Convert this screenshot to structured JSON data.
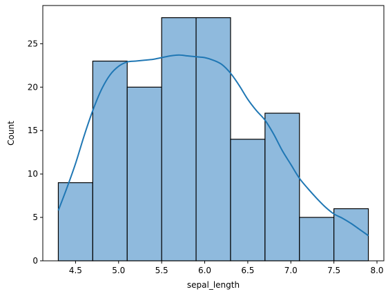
{
  "chart_data": {
    "type": "histogram",
    "xlabel": "sepal_length",
    "ylabel": "Count",
    "bins": [
      {
        "start": 4.3,
        "end": 4.7,
        "count": 9
      },
      {
        "start": 4.7,
        "end": 5.1,
        "count": 23
      },
      {
        "start": 5.1,
        "end": 5.5,
        "count": 20
      },
      {
        "start": 5.5,
        "end": 5.9,
        "count": 28
      },
      {
        "start": 5.9,
        "end": 6.3,
        "count": 28
      },
      {
        "start": 6.3,
        "end": 6.7,
        "count": 14
      },
      {
        "start": 6.7,
        "end": 7.1,
        "count": 17
      },
      {
        "start": 7.1,
        "end": 7.5,
        "count": 5
      },
      {
        "start": 7.5,
        "end": 7.9,
        "count": 6
      }
    ],
    "kde": {
      "x": [
        4.3,
        4.4,
        4.5,
        4.6,
        4.7,
        4.8,
        4.9,
        5.0,
        5.1,
        5.2,
        5.3,
        5.4,
        5.5,
        5.6,
        5.7,
        5.8,
        5.9,
        6.0,
        6.1,
        6.2,
        6.3,
        6.4,
        6.5,
        6.6,
        6.7,
        6.8,
        6.9,
        7.0,
        7.1,
        7.2,
        7.3,
        7.4,
        7.5,
        7.6,
        7.7,
        7.8,
        7.9
      ],
      "y": [
        5.8,
        8.4,
        11.2,
        14.4,
        17.3,
        19.7,
        21.4,
        22.4,
        22.9,
        23.0,
        23.1,
        23.2,
        23.4,
        23.6,
        23.7,
        23.6,
        23.5,
        23.4,
        23.1,
        22.6,
        21.6,
        20.2,
        18.6,
        17.3,
        16.2,
        14.6,
        12.7,
        11.1,
        9.5,
        8.3,
        7.2,
        6.2,
        5.4,
        4.9,
        4.3,
        3.6,
        2.9
      ]
    },
    "xlim": [
      4.12,
      8.08
    ],
    "ylim": [
      0,
      29.4
    ],
    "xticks": [
      4.5,
      5.0,
      5.5,
      6.0,
      6.5,
      7.0,
      7.5,
      8.0
    ],
    "xtick_labels": [
      "4.5",
      "5.0",
      "5.5",
      "6.0",
      "6.5",
      "7.0",
      "7.5",
      "8.0"
    ],
    "yticks": [
      0,
      5,
      10,
      15,
      20,
      25
    ],
    "ytick_labels": [
      "0",
      "5",
      "10",
      "15",
      "20",
      "25"
    ],
    "grid": false,
    "colors": {
      "bar_fill": "#8fbadd",
      "bar_edge": "#000000",
      "kde_line": "#1f77b4",
      "axes": "#000000"
    }
  }
}
